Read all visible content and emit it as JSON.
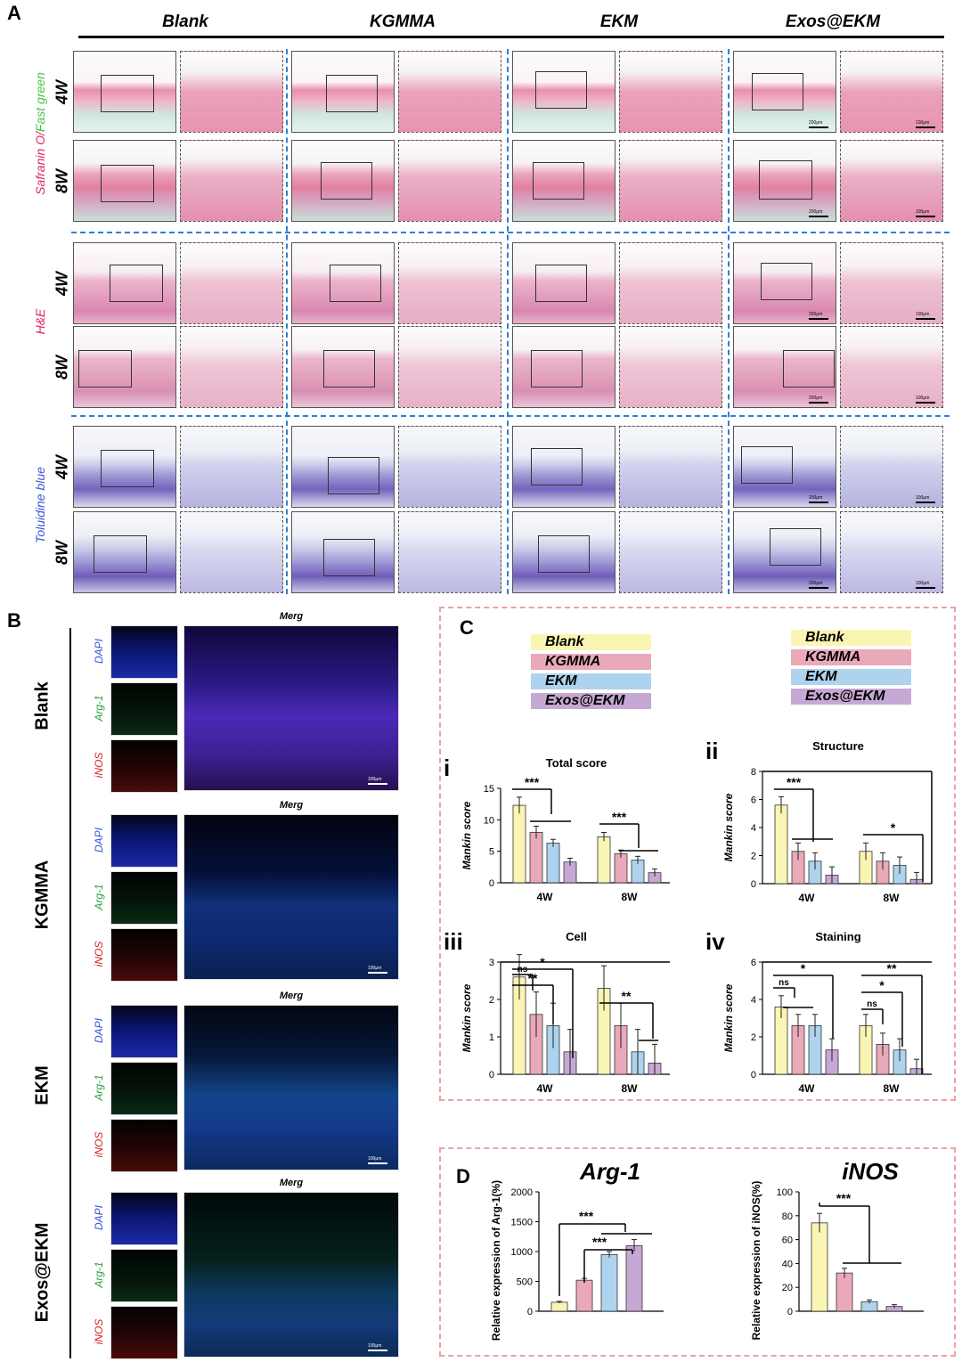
{
  "panels": {
    "A": "A",
    "B": "B",
    "C": "C",
    "D": "D"
  },
  "panelA": {
    "groups": [
      "Blank",
      "KGMMA",
      "EKM",
      "Exos@EKM"
    ],
    "timepoints": [
      "4W",
      "8W"
    ],
    "stains": [
      {
        "name_parts": [
          "Safranin O/",
          "Fast green"
        ],
        "colors": [
          "#e0245e",
          "#49c43c"
        ]
      },
      {
        "name_parts": [
          "H&E"
        ],
        "colors": [
          "#e0245e"
        ]
      },
      {
        "name_parts": [
          "Toluidine blue"
        ],
        "colors": [
          "#3a54d6"
        ]
      }
    ],
    "scale_low": "200μm",
    "scale_high": "100μm"
  },
  "panelB": {
    "groups": [
      "Blank",
      "KGMMA",
      "EKM",
      "Exos@EKM"
    ],
    "channels": [
      {
        "name": "DAPI",
        "color": "#2f4fe0"
      },
      {
        "name": "Arg-1",
        "color": "#2aa140"
      },
      {
        "name": "iNOS",
        "color": "#d82020"
      }
    ],
    "merge_title": "Merg",
    "scale": "100μm"
  },
  "panelC": {
    "legend": [
      "Blank",
      "KGMMA",
      "EKM",
      "Exos@EKM"
    ],
    "colors": {
      "Blank": "#fbf5b4",
      "KGMMA": "#e9a9b8",
      "EKM": "#add3ee",
      "Exos@EKM": "#c6a8d4"
    },
    "ylabel": "Mankin  score",
    "roman": [
      "i",
      "ii",
      "iii",
      "iv"
    ]
  },
  "chart_data": [
    {
      "type": "bar",
      "title": "Total score",
      "ylabel": "Mankin  score",
      "categories": [
        "4W",
        "8W"
      ],
      "ylim": [
        0,
        15
      ],
      "yticks": [
        0,
        5,
        10,
        15
      ],
      "series": [
        {
          "name": "Blank",
          "values": [
            12.3,
            7.3
          ],
          "err": [
            1.3,
            0.7
          ]
        },
        {
          "name": "KGMMA",
          "values": [
            8.0,
            4.6
          ],
          "err": [
            1.0,
            0.6
          ]
        },
        {
          "name": "EKM",
          "values": [
            6.3,
            3.6
          ],
          "err": [
            0.6,
            0.6
          ]
        },
        {
          "name": "Exos@EKM",
          "values": [
            3.3,
            1.6
          ],
          "err": [
            0.6,
            0.6
          ]
        }
      ],
      "annotations": [
        "***",
        "***"
      ]
    },
    {
      "type": "bar",
      "title": "Structure",
      "ylabel": "Mankin  score",
      "categories": [
        "4W",
        "8W"
      ],
      "ylim": [
        0,
        8
      ],
      "yticks": [
        0,
        2,
        4,
        6,
        8
      ],
      "series": [
        {
          "name": "Blank",
          "values": [
            5.6,
            2.3
          ],
          "err": [
            0.6,
            0.6
          ]
        },
        {
          "name": "KGMMA",
          "values": [
            2.3,
            1.6
          ],
          "err": [
            0.6,
            0.6
          ]
        },
        {
          "name": "EKM",
          "values": [
            1.6,
            1.3
          ],
          "err": [
            0.6,
            0.6
          ]
        },
        {
          "name": "Exos@EKM",
          "values": [
            0.6,
            0.3
          ],
          "err": [
            0.6,
            0.5
          ]
        }
      ],
      "annotations": [
        "***",
        "*"
      ]
    },
    {
      "type": "bar",
      "title": "Cell",
      "ylabel": "Mankin  score",
      "categories": [
        "4W",
        "8W"
      ],
      "ylim": [
        0,
        3
      ],
      "yticks": [
        0,
        1,
        2,
        3
      ],
      "series": [
        {
          "name": "Blank",
          "values": [
            2.6,
            2.3
          ],
          "err": [
            0.6,
            0.6
          ]
        },
        {
          "name": "KGMMA",
          "values": [
            1.6,
            1.3
          ],
          "err": [
            0.6,
            0.6
          ]
        },
        {
          "name": "EKM",
          "values": [
            1.3,
            0.6
          ],
          "err": [
            0.6,
            0.6
          ]
        },
        {
          "name": "Exos@EKM",
          "values": [
            0.6,
            0.3
          ],
          "err": [
            0.6,
            0.5
          ]
        }
      ],
      "annotations": [
        "ns",
        "**",
        "*",
        "**"
      ]
    },
    {
      "type": "bar",
      "title": "Staining",
      "ylabel": "Mankin  score",
      "categories": [
        "4W",
        "8W"
      ],
      "ylim": [
        0,
        6
      ],
      "yticks": [
        0,
        2,
        4,
        6
      ],
      "series": [
        {
          "name": "Blank",
          "values": [
            3.6,
            2.6
          ],
          "err": [
            0.6,
            0.6
          ]
        },
        {
          "name": "KGMMA",
          "values": [
            2.6,
            1.6
          ],
          "err": [
            0.6,
            0.6
          ]
        },
        {
          "name": "EKM",
          "values": [
            2.6,
            1.3
          ],
          "err": [
            0.6,
            0.6
          ]
        },
        {
          "name": "Exos@EKM",
          "values": [
            1.3,
            0.3
          ],
          "err": [
            0.6,
            0.5
          ]
        }
      ],
      "annotations": [
        "ns",
        "*",
        "ns",
        "*",
        "**"
      ]
    },
    {
      "type": "bar",
      "title": "Arg-1",
      "ylabel": "Relative expression of Arg-1(%)",
      "categories": [
        "Blank",
        "KGMMA",
        "EKM",
        "Exos@EKM"
      ],
      "ylim": [
        0,
        2000
      ],
      "yticks": [
        0,
        500,
        1000,
        1500,
        2000
      ],
      "values": [
        150,
        520,
        950,
        1100
      ],
      "err": [
        15,
        30,
        50,
        100
      ],
      "annotations": [
        "***",
        "***"
      ]
    },
    {
      "type": "bar",
      "title": "iNOS",
      "ylabel": "Relative expression of iNOS(%)",
      "categories": [
        "Blank",
        "KGMMA",
        "EKM",
        "Exos@EKM"
      ],
      "ylim": [
        0,
        100
      ],
      "yticks": [
        0,
        20,
        40,
        60,
        80,
        100
      ],
      "values": [
        74,
        32,
        8,
        4
      ],
      "err": [
        8,
        4,
        1.5,
        1.5
      ],
      "annotations": [
        "***"
      ]
    }
  ]
}
